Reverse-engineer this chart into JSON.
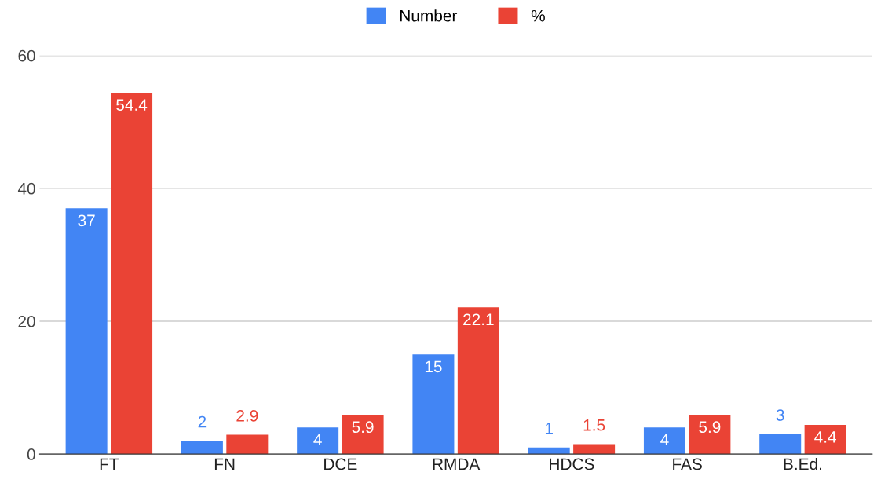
{
  "chart_data": {
    "type": "bar",
    "categories": [
      "FT",
      "FN",
      "DCE",
      "RMDA",
      "HDCS",
      "FAS",
      "B.Ed."
    ],
    "series": [
      {
        "name": "Number",
        "color": "#4285f4",
        "values": [
          37,
          2,
          4,
          15,
          1,
          4,
          3
        ]
      },
      {
        "name": "%",
        "color": "#ea4335",
        "values": [
          54.4,
          2.9,
          5.9,
          22.1,
          1.5,
          5.9,
          4.4
        ]
      }
    ],
    "ylim": [
      0,
      60
    ],
    "yticks": [
      0,
      20,
      40,
      60
    ],
    "grid": "y",
    "legend": "top",
    "data_labels": true
  }
}
